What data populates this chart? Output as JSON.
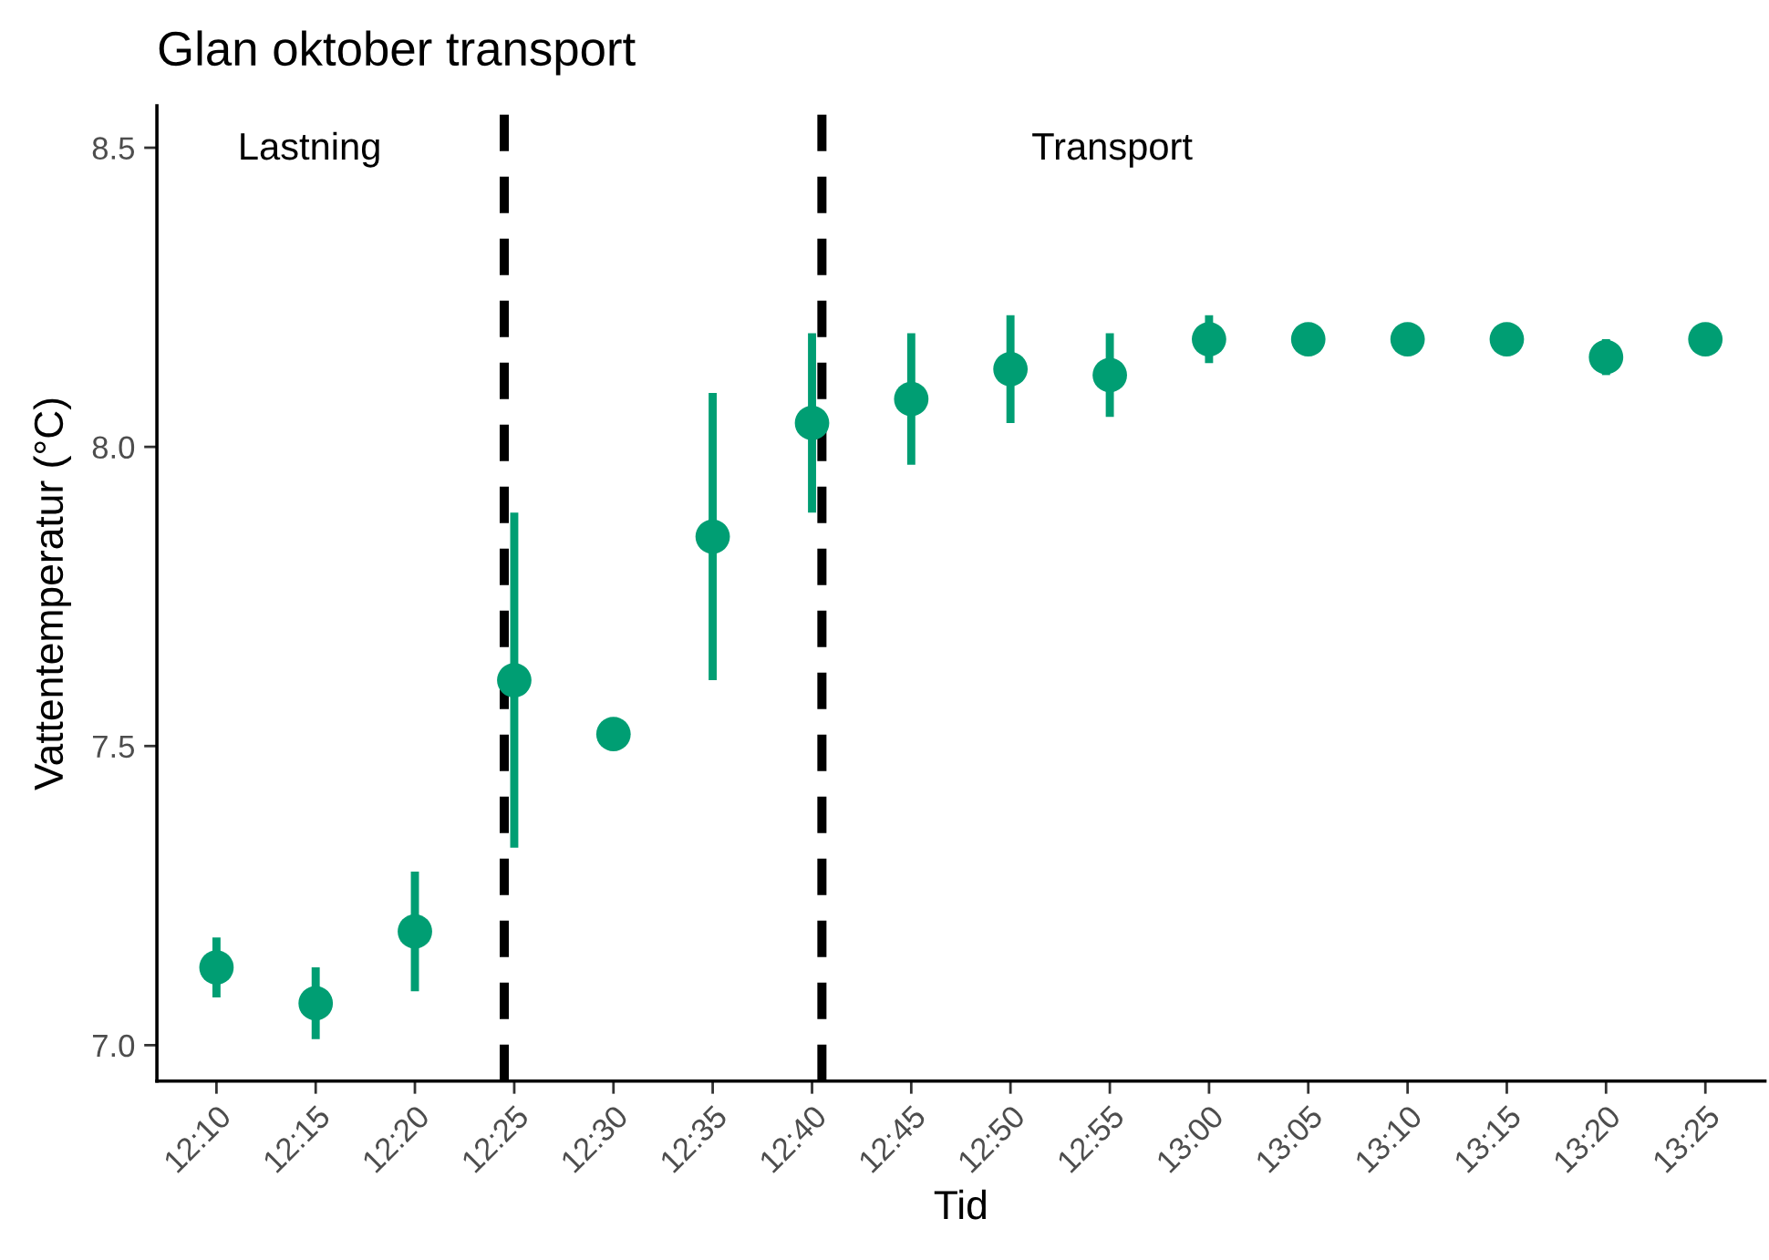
{
  "chart_data": {
    "type": "scatter",
    "title": "Glan oktober transport",
    "xlabel": "Tid",
    "ylabel": "Vattentemperatur (°C)",
    "x": [
      12.1667,
      12.25,
      12.3333,
      12.4167,
      12.5,
      12.5833,
      12.6667,
      12.75,
      12.8333,
      12.9167,
      13.0,
      13.0833,
      13.1667,
      13.25,
      13.3333,
      13.4167
    ],
    "values": [
      7.13,
      7.07,
      7.19,
      7.61,
      7.52,
      7.85,
      8.04,
      8.08,
      8.13,
      8.12,
      8.18,
      8.18,
      8.18,
      8.18,
      8.15,
      8.18
    ],
    "errors": [
      0.05,
      0.06,
      0.1,
      0.28,
      null,
      0.24,
      0.15,
      0.11,
      0.09,
      0.07,
      0.04,
      null,
      null,
      null,
      0.03,
      null
    ],
    "color": "#009e73",
    "marker": "circle",
    "xlim": [
      12.1167,
      13.4667
    ],
    "xticks": [
      {
        "value": 12.1667,
        "label": "12:10"
      },
      {
        "value": 12.25,
        "label": "12:15"
      },
      {
        "value": 12.3333,
        "label": "12:20"
      },
      {
        "value": 12.4167,
        "label": "12:25"
      },
      {
        "value": 12.5,
        "label": "12:30"
      },
      {
        "value": 12.5833,
        "label": "12:35"
      },
      {
        "value": 12.6667,
        "label": "12:40"
      },
      {
        "value": 12.75,
        "label": "12:45"
      },
      {
        "value": 12.8333,
        "label": "12:50"
      },
      {
        "value": 12.9167,
        "label": "12:55"
      },
      {
        "value": 13.0,
        "label": "13:00"
      },
      {
        "value": 13.0833,
        "label": "13:05"
      },
      {
        "value": 13.1667,
        "label": "13:10"
      },
      {
        "value": 13.25,
        "label": "13:15"
      },
      {
        "value": 13.3333,
        "label": "13:20"
      },
      {
        "value": 13.4167,
        "label": "13:25"
      }
    ],
    "ylim": [
      6.94,
      8.57
    ],
    "yticks": [
      {
        "value": 7.0,
        "label": "7.0"
      },
      {
        "value": 7.5,
        "label": "7.5"
      },
      {
        "value": 8.0,
        "label": "8.0"
      },
      {
        "value": 8.5,
        "label": "8.5"
      }
    ],
    "ref_lines": [
      {
        "axis": "x",
        "value": 12.4083,
        "color": "#000000",
        "line_style": "dashed"
      },
      {
        "axis": "x",
        "value": 12.675,
        "color": "#000000",
        "line_style": "dashed"
      }
    ],
    "annotations": [
      "Lastning",
      "Transport"
    ]
  }
}
